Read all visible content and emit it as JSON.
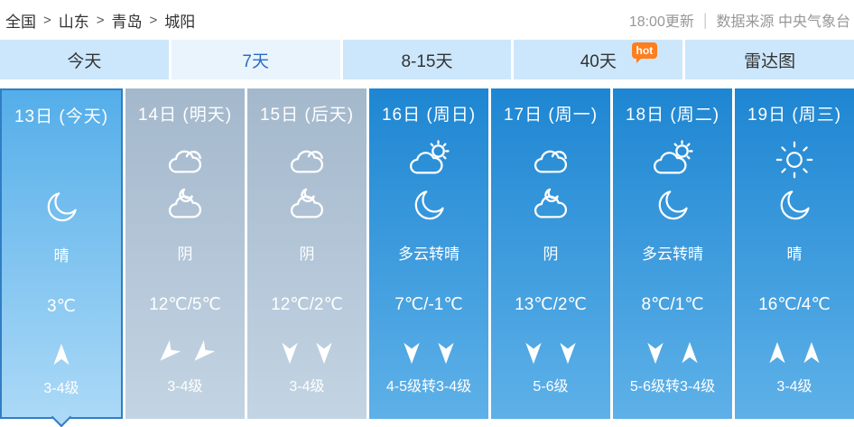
{
  "breadcrumb": {
    "separator": ">",
    "items": [
      "全国",
      "山东",
      "青岛",
      "城阳"
    ]
  },
  "meta": {
    "update_time": "18:00更新",
    "separator": "|",
    "source": "数据来源 中央气象台"
  },
  "tabs": [
    {
      "label": "今天",
      "active": false,
      "badge": null
    },
    {
      "label": "7天",
      "active": true,
      "badge": null
    },
    {
      "label": "8-15天",
      "active": false,
      "badge": null
    },
    {
      "label": "40天",
      "active": false,
      "badge": "hot"
    },
    {
      "label": "雷达图",
      "active": false,
      "badge": null
    }
  ],
  "forecast": {
    "days": [
      {
        "date": "13日 (今天)",
        "theme": "today",
        "selected": true,
        "day_icon": null,
        "night_icon": "moon",
        "weather": "晴",
        "temp": "3℃",
        "winds": [
          "N"
        ],
        "wind_level": "3-4级"
      },
      {
        "date": "14日 (明天)",
        "theme": "gray",
        "selected": false,
        "day_icon": "cloudy",
        "night_icon": "cloud-moon",
        "weather": "阴",
        "temp": "12℃/5℃",
        "winds": [
          "SW",
          "SW"
        ],
        "wind_level": "3-4级"
      },
      {
        "date": "15日 (后天)",
        "theme": "gray",
        "selected": false,
        "day_icon": "cloudy",
        "night_icon": "cloud-moon",
        "weather": "阴",
        "temp": "12℃/2℃",
        "winds": [
          "S",
          "S"
        ],
        "wind_level": "3-4级"
      },
      {
        "date": "16日 (周日)",
        "theme": "blue",
        "selected": false,
        "day_icon": "sun-cloud",
        "night_icon": "moon",
        "weather": "多云转晴",
        "temp": "7℃/-1℃",
        "winds": [
          "S",
          "S"
        ],
        "wind_level": "4-5级转3-4级"
      },
      {
        "date": "17日 (周一)",
        "theme": "blue",
        "selected": false,
        "day_icon": "cloudy",
        "night_icon": "cloud-moon",
        "weather": "阴",
        "temp": "13℃/2℃",
        "winds": [
          "S",
          "S"
        ],
        "wind_level": "5-6级"
      },
      {
        "date": "18日 (周二)",
        "theme": "blue",
        "selected": false,
        "day_icon": "sun-cloud",
        "night_icon": "moon",
        "weather": "多云转晴",
        "temp": "8℃/1℃",
        "winds": [
          "S",
          "N"
        ],
        "wind_level": "5-6级转3-4级"
      },
      {
        "date": "19日 (周三)",
        "theme": "blue",
        "selected": false,
        "day_icon": "sun",
        "night_icon": "moon",
        "weather": "晴",
        "temp": "16℃/4℃",
        "winds": [
          "N",
          "N"
        ],
        "wind_level": "3-4级"
      }
    ]
  },
  "colors": {
    "tab_bg": "#CCE7FB",
    "tab_text": "#333333",
    "tab_active_bg": "#E9F4FD",
    "tab_active_text": "#2A6CC5",
    "hot_badge": "#FF7E1E",
    "today_top": "#54AEE9",
    "today_bottom": "#ABD9F7",
    "today_border": "#2F7EC5",
    "gray_top": "#A4B8CC",
    "gray_bottom": "#C3D4E3",
    "blue_top": "#1E86D2",
    "blue_bottom": "#5EB1E8"
  }
}
